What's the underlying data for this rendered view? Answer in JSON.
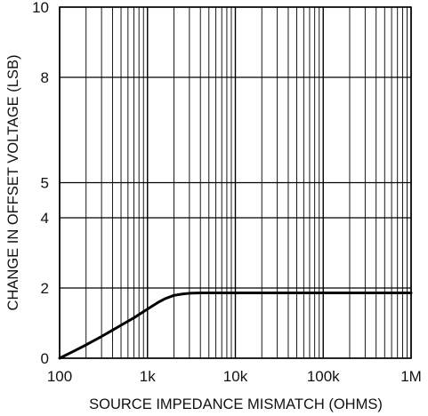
{
  "chart_data": {
    "type": "line",
    "x_scale": "log",
    "xlabel": "SOURCE IMPEDANCE MISMATCH (OHMS)",
    "ylabel": "CHANGE IN OFFSET VOLTAGE (LSB)",
    "xlim": [
      100,
      1000000
    ],
    "ylim": [
      0,
      10
    ],
    "x_ticks": [
      {
        "value": 100,
        "label": "100"
      },
      {
        "value": 1000,
        "label": "1k"
      },
      {
        "value": 10000,
        "label": "10k"
      },
      {
        "value": 100000,
        "label": "100k"
      },
      {
        "value": 1000000,
        "label": "1M"
      }
    ],
    "y_ticks": [
      {
        "value": 0,
        "label": "0"
      },
      {
        "value": 2,
        "label": "2"
      },
      {
        "value": 4,
        "label": "4"
      },
      {
        "value": 5,
        "label": "5"
      },
      {
        "value": 8,
        "label": "8"
      },
      {
        "value": 10,
        "label": "10"
      }
    ],
    "grid": true,
    "series": [
      {
        "color": "#000000",
        "x": [
          100,
          150,
          200,
          300,
          400,
          500,
          700,
          1000,
          1300,
          1600,
          2000,
          2500,
          3000,
          4000,
          5000,
          10000,
          100000,
          1000000
        ],
        "y": [
          0.0,
          0.22,
          0.38,
          0.62,
          0.8,
          0.94,
          1.15,
          1.4,
          1.58,
          1.7,
          1.79,
          1.83,
          1.85,
          1.86,
          1.86,
          1.86,
          1.86,
          1.86
        ]
      }
    ]
  }
}
